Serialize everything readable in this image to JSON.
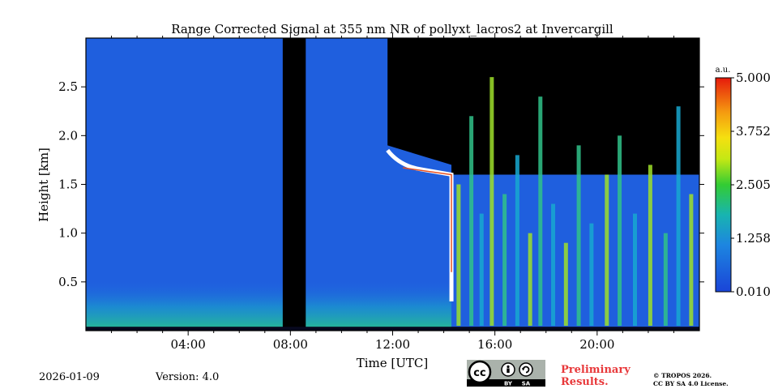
{
  "chart_data": {
    "type": "heatmap",
    "title": "Range Corrected Signal at 355 nm NR of pollyxt_lacros2 at Invercargill",
    "xlabel": "Time [UTC]",
    "ylabel": "Height [km]",
    "xlim": [
      0,
      24
    ],
    "ylim": [
      0,
      3.0
    ],
    "x_ticks": [
      {
        "value": 4,
        "label": "04:00"
      },
      {
        "value": 8,
        "label": "08:00"
      },
      {
        "value": 12,
        "label": "12:00"
      },
      {
        "value": 16,
        "label": "16:00"
      },
      {
        "value": 20,
        "label": "20:00"
      }
    ],
    "y_ticks": [
      {
        "value": 0.5,
        "label": "0.5"
      },
      {
        "value": 1.0,
        "label": "1.0"
      },
      {
        "value": 1.5,
        "label": "1.5"
      },
      {
        "value": 2.0,
        "label": "2.0"
      },
      {
        "value": 2.5,
        "label": "2.5"
      }
    ],
    "colorbar": {
      "unit": "a.u.",
      "range": [
        0.01,
        5.0
      ],
      "tick_labels": [
        "0.010",
        "1.258",
        "2.505",
        "3.752",
        "5.000"
      ],
      "tick_values": [
        0.01,
        1.258,
        2.505,
        3.752,
        5.0
      ]
    },
    "no_data_periods": [
      [
        7.7,
        8.6
      ]
    ],
    "cloud_layer": {
      "start": 11.8,
      "end": 14.3,
      "height_start": 1.85,
      "height_end": 1.6
    },
    "boundary_layer_top": 0.5
  },
  "footer": {
    "date": "2026-01-09",
    "version": "Version: 4.0",
    "preliminary_line1": "Preliminary",
    "preliminary_line2": "Results.",
    "copyright_line1": "© TROPOS 2026.",
    "copyright_line2": "CC BY SA 4.0 License.",
    "license_cc": "cc",
    "license_by": "BY",
    "license_sa": "SA"
  }
}
